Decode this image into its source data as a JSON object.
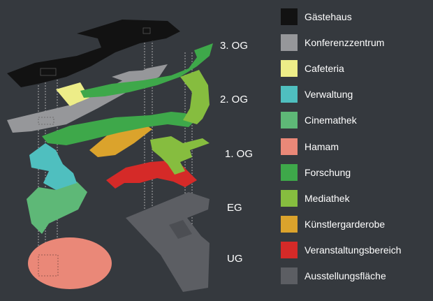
{
  "floors": [
    {
      "key": "3og",
      "label": "3. OG"
    },
    {
      "key": "2og",
      "label": "2. OG"
    },
    {
      "key": "1og",
      "label": "1. OG"
    },
    {
      "key": "eg",
      "label": "EG"
    },
    {
      "key": "ug",
      "label": "UG"
    }
  ],
  "legend": [
    {
      "label": "Gästehaus",
      "color": "#121212"
    },
    {
      "label": "Konferenzzentrum",
      "color": "#96979a"
    },
    {
      "label": "Cafeteria",
      "color": "#eded88"
    },
    {
      "label": "Verwaltung",
      "color": "#4fbfbf"
    },
    {
      "label": "Cinemathek",
      "color": "#5eb877"
    },
    {
      "label": "Hamam",
      "color": "#ea8878"
    },
    {
      "label": "Forschung",
      "color": "#3ea84a"
    },
    {
      "label": "Mediathek",
      "color": "#86bd3f"
    },
    {
      "label": "Künstlergarderobe",
      "color": "#dba32c"
    },
    {
      "label": "Veranstaltungsbereich",
      "color": "#d52a28"
    },
    {
      "label": "Ausstellungsfläche",
      "color": "#5c5e63"
    }
  ]
}
